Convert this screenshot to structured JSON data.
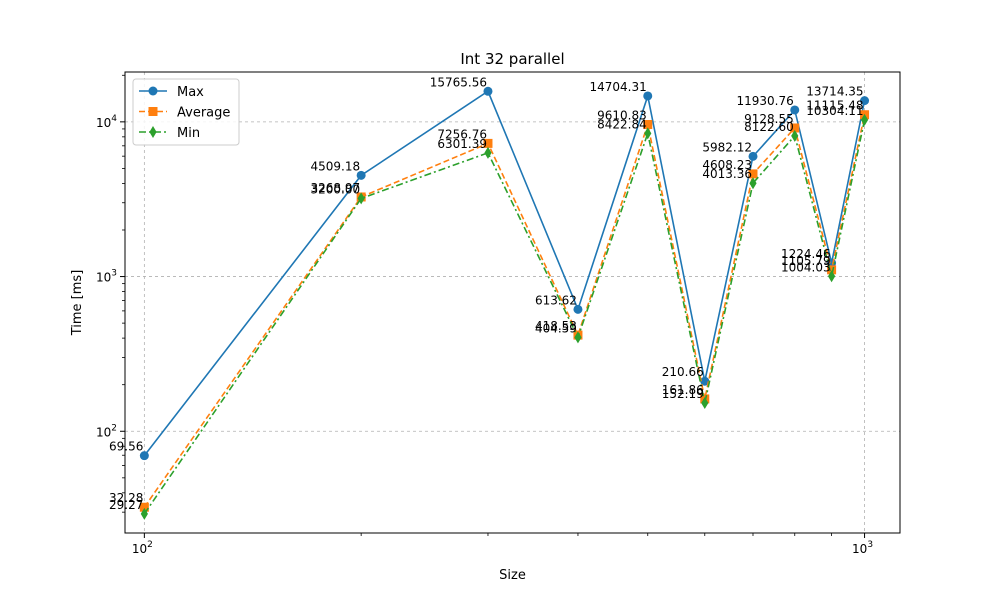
{
  "chart_data": {
    "type": "line",
    "title": "Int 32 parallel",
    "xlabel": "Size",
    "ylabel": "Time [ms]",
    "x": [
      100,
      200,
      300,
      400,
      500,
      600,
      700,
      800,
      900,
      1000
    ],
    "x_scale": "log",
    "y_scale": "log",
    "xlim": [
      94,
      1120
    ],
    "ylim": [
      22,
      21000
    ],
    "grid": true,
    "legend_position": "top-left",
    "x_ticks": [
      {
        "value": 100,
        "base": "10",
        "exp": "2"
      },
      {
        "value": 1000,
        "base": "10",
        "exp": "3"
      }
    ],
    "y_ticks": [
      {
        "value": 100,
        "base": "10",
        "exp": "2"
      },
      {
        "value": 1000,
        "base": "10",
        "exp": "3"
      },
      {
        "value": 10000,
        "base": "10",
        "exp": "4"
      }
    ],
    "series": [
      {
        "name": "Max",
        "color": "#1f77b4",
        "marker": "circle",
        "line_style": "solid",
        "values": [
          69.56,
          4509.18,
          15765.56,
          613.62,
          14704.31,
          210.66,
          5982.12,
          11930.76,
          1224.46,
          13714.35
        ],
        "labels": [
          "69.56",
          "4509.18",
          "15765.56",
          "613.62",
          "14704.31",
          "210.66",
          "5982.12",
          "11930.76",
          "1224.46",
          "13714.35"
        ]
      },
      {
        "name": "Average",
        "color": "#ff7f0e",
        "marker": "square",
        "line_style": "dashed",
        "values": [
          32.28,
          3268.97,
          7256.76,
          418.53,
          9610.83,
          161.86,
          4608.23,
          9128.55,
          1105.79,
          11115.48
        ],
        "labels": [
          "32.28",
          "3268.97",
          "7256.76",
          "418.53",
          "9610.83",
          "161.86",
          "4608.23",
          "9128.55",
          "1105.79",
          "11115.48"
        ]
      },
      {
        "name": "Min",
        "color": "#2ca02c",
        "marker": "diamond",
        "line_style": "dashdot",
        "values": [
          29.27,
          3200.0,
          6301.39,
          404.59,
          8422.84,
          152.19,
          4013.36,
          8122.6,
          1004.03,
          10304.11
        ],
        "labels": [
          "29.27",
          "3200.00",
          "6301.39",
          "404.59",
          "8422.84",
          "152.19",
          "4013.36",
          "8122.60",
          "1004.03",
          "10304.11"
        ]
      }
    ]
  }
}
